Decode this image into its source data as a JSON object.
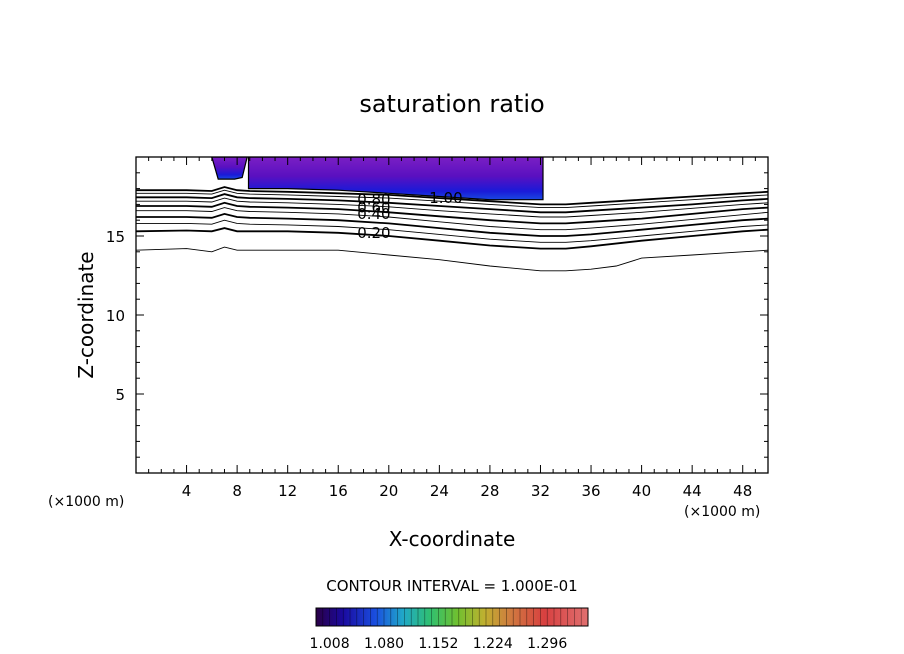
{
  "chart_data": {
    "type": "contour",
    "title": "saturation ratio",
    "xlabel": "X-coordinate",
    "ylabel": "Z-coordinate",
    "x_unit": "(×1000 m)",
    "y_unit": "(×1000 m)",
    "xlim": [
      0,
      50
    ],
    "ylim": [
      0,
      20
    ],
    "x_ticks": [
      4,
      8,
      12,
      16,
      20,
      24,
      28,
      32,
      36,
      40,
      44,
      48
    ],
    "y_ticks": [
      5,
      10,
      15
    ],
    "contour_interval_text": "CONTOUR INTERVAL = 1.000E-01",
    "contour_labels": [
      {
        "text": "1.00",
        "x": 23.2,
        "z": 17.4
      },
      {
        "text": "0.80",
        "x": 17.5,
        "z": 17.3
      },
      {
        "text": "0.60",
        "x": 17.5,
        "z": 16.8
      },
      {
        "text": "0.40",
        "x": 17.5,
        "z": 16.4
      },
      {
        "text": "0.20",
        "x": 17.5,
        "z": 15.2
      }
    ],
    "contours": [
      {
        "level": 1.0,
        "x": [
          0,
          4,
          6,
          7,
          8,
          9,
          12,
          16,
          20,
          24,
          28,
          32,
          34,
          36,
          40,
          44,
          48,
          50
        ],
        "z": [
          17.9,
          17.9,
          17.85,
          18.1,
          17.9,
          17.85,
          17.8,
          17.7,
          17.6,
          17.4,
          17.2,
          17.0,
          17.0,
          17.1,
          17.3,
          17.5,
          17.7,
          17.8
        ]
      },
      {
        "level": 0.9,
        "x": [
          0,
          4,
          6,
          7,
          8,
          9,
          12,
          16,
          20,
          24,
          28,
          32,
          34,
          36,
          40,
          44,
          48,
          50
        ],
        "z": [
          17.7,
          17.7,
          17.65,
          17.9,
          17.7,
          17.65,
          17.6,
          17.5,
          17.4,
          17.2,
          17.0,
          16.8,
          16.8,
          16.9,
          17.1,
          17.3,
          17.5,
          17.6
        ]
      },
      {
        "level": 0.8,
        "x": [
          0,
          4,
          6,
          7,
          8,
          9,
          12,
          16,
          20,
          24,
          28,
          32,
          34,
          36,
          40,
          44,
          48,
          50
        ],
        "z": [
          17.45,
          17.45,
          17.4,
          17.65,
          17.45,
          17.4,
          17.35,
          17.25,
          17.1,
          16.9,
          16.7,
          16.5,
          16.5,
          16.6,
          16.8,
          17.0,
          17.25,
          17.35
        ]
      },
      {
        "level": 0.7,
        "x": [
          0,
          4,
          6,
          7,
          8,
          9,
          12,
          16,
          20,
          24,
          28,
          32,
          34,
          36,
          40,
          44,
          48,
          50
        ],
        "z": [
          17.2,
          17.2,
          17.15,
          17.4,
          17.2,
          17.15,
          17.1,
          17.0,
          16.85,
          16.6,
          16.4,
          16.2,
          16.2,
          16.3,
          16.5,
          16.75,
          17.0,
          17.1
        ]
      },
      {
        "level": 0.6,
        "x": [
          0,
          4,
          6,
          7,
          8,
          9,
          12,
          16,
          20,
          24,
          28,
          32,
          34,
          36,
          40,
          44,
          48,
          50
        ],
        "z": [
          16.9,
          16.9,
          16.85,
          17.1,
          16.9,
          16.85,
          16.8,
          16.7,
          16.5,
          16.25,
          16.0,
          15.8,
          15.8,
          15.9,
          16.1,
          16.4,
          16.7,
          16.8
        ]
      },
      {
        "level": 0.5,
        "x": [
          0,
          4,
          6,
          7,
          8,
          9,
          12,
          16,
          20,
          24,
          28,
          32,
          34,
          36,
          40,
          44,
          48,
          50
        ],
        "z": [
          16.6,
          16.6,
          16.55,
          16.8,
          16.6,
          16.55,
          16.5,
          16.4,
          16.2,
          15.9,
          15.6,
          15.4,
          15.4,
          15.5,
          15.75,
          16.05,
          16.35,
          16.5
        ]
      },
      {
        "level": 0.4,
        "x": [
          0,
          4,
          6,
          7,
          8,
          9,
          12,
          16,
          20,
          24,
          28,
          32,
          34,
          36,
          40,
          44,
          48,
          50
        ],
        "z": [
          16.2,
          16.2,
          16.15,
          16.4,
          16.2,
          16.15,
          16.1,
          16.0,
          15.8,
          15.5,
          15.2,
          15.0,
          15.0,
          15.1,
          15.4,
          15.7,
          16.0,
          16.1
        ]
      },
      {
        "level": 0.3,
        "x": [
          0,
          4,
          6,
          7,
          8,
          9,
          12,
          16,
          20,
          24,
          28,
          32,
          34,
          36,
          40,
          44,
          48,
          50
        ],
        "z": [
          15.8,
          15.8,
          15.75,
          16.0,
          15.8,
          15.75,
          15.7,
          15.6,
          15.4,
          15.1,
          14.8,
          14.6,
          14.6,
          14.7,
          15.0,
          15.3,
          15.6,
          15.7
        ]
      },
      {
        "level": 0.2,
        "x": [
          0,
          4,
          6,
          7,
          8,
          9,
          12,
          16,
          20,
          24,
          28,
          32,
          34,
          36,
          40,
          44,
          48,
          50
        ],
        "z": [
          15.3,
          15.35,
          15.3,
          15.5,
          15.3,
          15.3,
          15.3,
          15.2,
          15.0,
          14.7,
          14.4,
          14.2,
          14.2,
          14.35,
          14.7,
          15.0,
          15.3,
          15.4
        ]
      },
      {
        "level": 0.1,
        "x": [
          0,
          4,
          6,
          7,
          8,
          9,
          12,
          14,
          16,
          20,
          24,
          28,
          32,
          34,
          36,
          38,
          40,
          44,
          48,
          50
        ],
        "z": [
          14.1,
          14.2,
          14.0,
          14.3,
          14.1,
          14.1,
          14.1,
          14.1,
          14.1,
          13.8,
          13.5,
          13.1,
          12.8,
          12.8,
          12.9,
          13.1,
          13.6,
          13.8,
          14.0,
          14.1
        ]
      }
    ],
    "shaded_regions": [
      {
        "x": [
          6.0,
          8.8,
          8.4,
          7.8,
          6.5
        ],
        "z": [
          20,
          20,
          18.7,
          18.6,
          18.6
        ]
      },
      {
        "x": [
          8.9,
          32.2,
          32.2,
          28,
          24,
          20,
          16,
          12,
          8.9
        ],
        "z": [
          20,
          20,
          17.3,
          17.3,
          17.5,
          17.7,
          17.9,
          18.0,
          18.0
        ]
      }
    ],
    "colorbar": {
      "ticks": [
        "1.008",
        "1.080",
        "1.152",
        "1.224",
        "1.296"
      ],
      "range": [
        0.99,
        1.35
      ]
    }
  }
}
